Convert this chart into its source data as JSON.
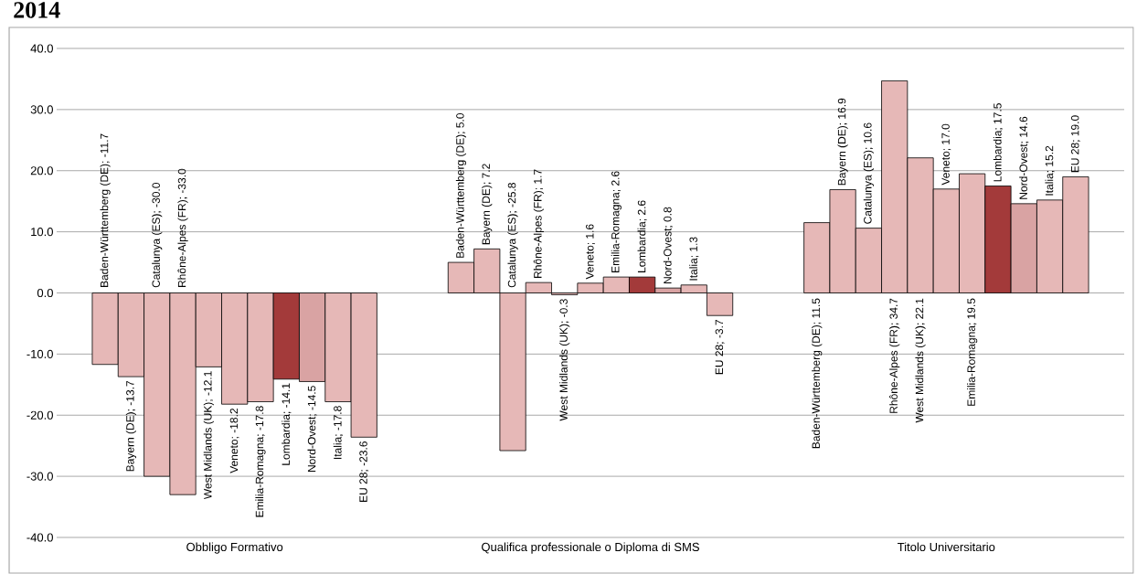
{
  "chart_data": {
    "type": "bar",
    "title": "2014",
    "categories": [
      "Obbligo Formativo",
      "Qualifica professionale o Diploma di SMS",
      "Titolo Universitario"
    ],
    "series": [
      {
        "color": "#e6b8b7",
        "values": [
          -11.7,
          5.0,
          11.5
        ],
        "value_labels": [
          "Baden-Württemberg (DE); -11.7",
          "Baden-Württemberg (DE); 5.0",
          "Baden-Württemberg (DE); 11.5"
        ]
      },
      {
        "color": "#e6b8b7",
        "values": [
          -13.7,
          7.2,
          16.9
        ],
        "value_labels": [
          "Bayern (DE); -13.7",
          "Bayern (DE); 7.2",
          "Bayern (DE); 16.9"
        ]
      },
      {
        "color": "#e6b8b7",
        "values": [
          -30.0,
          -25.8,
          10.6
        ],
        "value_labels": [
          "Catalunya (ES); -30.0",
          "Catalunya (ES); -25.8",
          "Catalunya (ES); 10.6"
        ]
      },
      {
        "color": "#e6b8b7",
        "values": [
          -33.0,
          1.7,
          34.7
        ],
        "value_labels": [
          "Rhône-Alpes (FR); -33.0",
          "Rhône-Alpes (FR); 1.7",
          "Rhône-Alpes (FR); 34.7"
        ]
      },
      {
        "color": "#e6b8b7",
        "values": [
          -12.1,
          -0.3,
          22.1
        ],
        "value_labels": [
          "West Midlands (UK); -12.1",
          "West Midlands (UK); -0.3",
          "West Midlands (UK); 22.1"
        ]
      },
      {
        "color": "#e6b8b7",
        "values": [
          -18.2,
          1.6,
          17.0
        ],
        "value_labels": [
          "Veneto; -18.2",
          "Veneto; 1.6",
          "Veneto; 17.0"
        ]
      },
      {
        "color": "#e6b8b7",
        "values": [
          -17.8,
          2.6,
          19.5
        ],
        "value_labels": [
          "Emilia-Romagna; -17.8",
          "Emilia-Romagna; 2.6",
          "Emilia-Romagna; 19.5"
        ]
      },
      {
        "color": "#a33a3a",
        "values": [
          -14.1,
          2.6,
          17.5
        ],
        "value_labels": [
          "Lombardia; -14.1",
          "Lombardia; 2.6",
          "Lombardia; 17.5"
        ]
      },
      {
        "color": "#d9a3a3",
        "values": [
          -14.5,
          0.8,
          14.6
        ],
        "value_labels": [
          "Nord-Ovest; -14.5",
          "Nord-Ovest; 0.8",
          "Nord-Ovest; 14.6"
        ]
      },
      {
        "color": "#e6b8b7",
        "values": [
          -17.8,
          1.3,
          15.2
        ],
        "value_labels": [
          "Italia; -17.8",
          "Italia; 1.3",
          "Italia; 15.2"
        ]
      },
      {
        "color": "#e6b8b7",
        "values": [
          -23.6,
          -3.7,
          19.0
        ],
        "value_labels": [
          "EU 28; -23.6",
          "EU 28; -3.7",
          "EU 28; 19.0"
        ]
      }
    ],
    "ylim": [
      -40,
      40
    ],
    "yticks": [
      {
        "value": -40,
        "label": "-40.0"
      },
      {
        "value": -30,
        "label": "-30.0"
      },
      {
        "value": -20,
        "label": "-20.0"
      },
      {
        "value": -10,
        "label": "-10.0"
      },
      {
        "value": 0,
        "label": "0.0"
      },
      {
        "value": 10,
        "label": "10.0"
      },
      {
        "value": 20,
        "label": "20.0"
      },
      {
        "value": 30,
        "label": "30.0"
      },
      {
        "value": 40,
        "label": "40.0"
      }
    ],
    "grid": "y"
  }
}
